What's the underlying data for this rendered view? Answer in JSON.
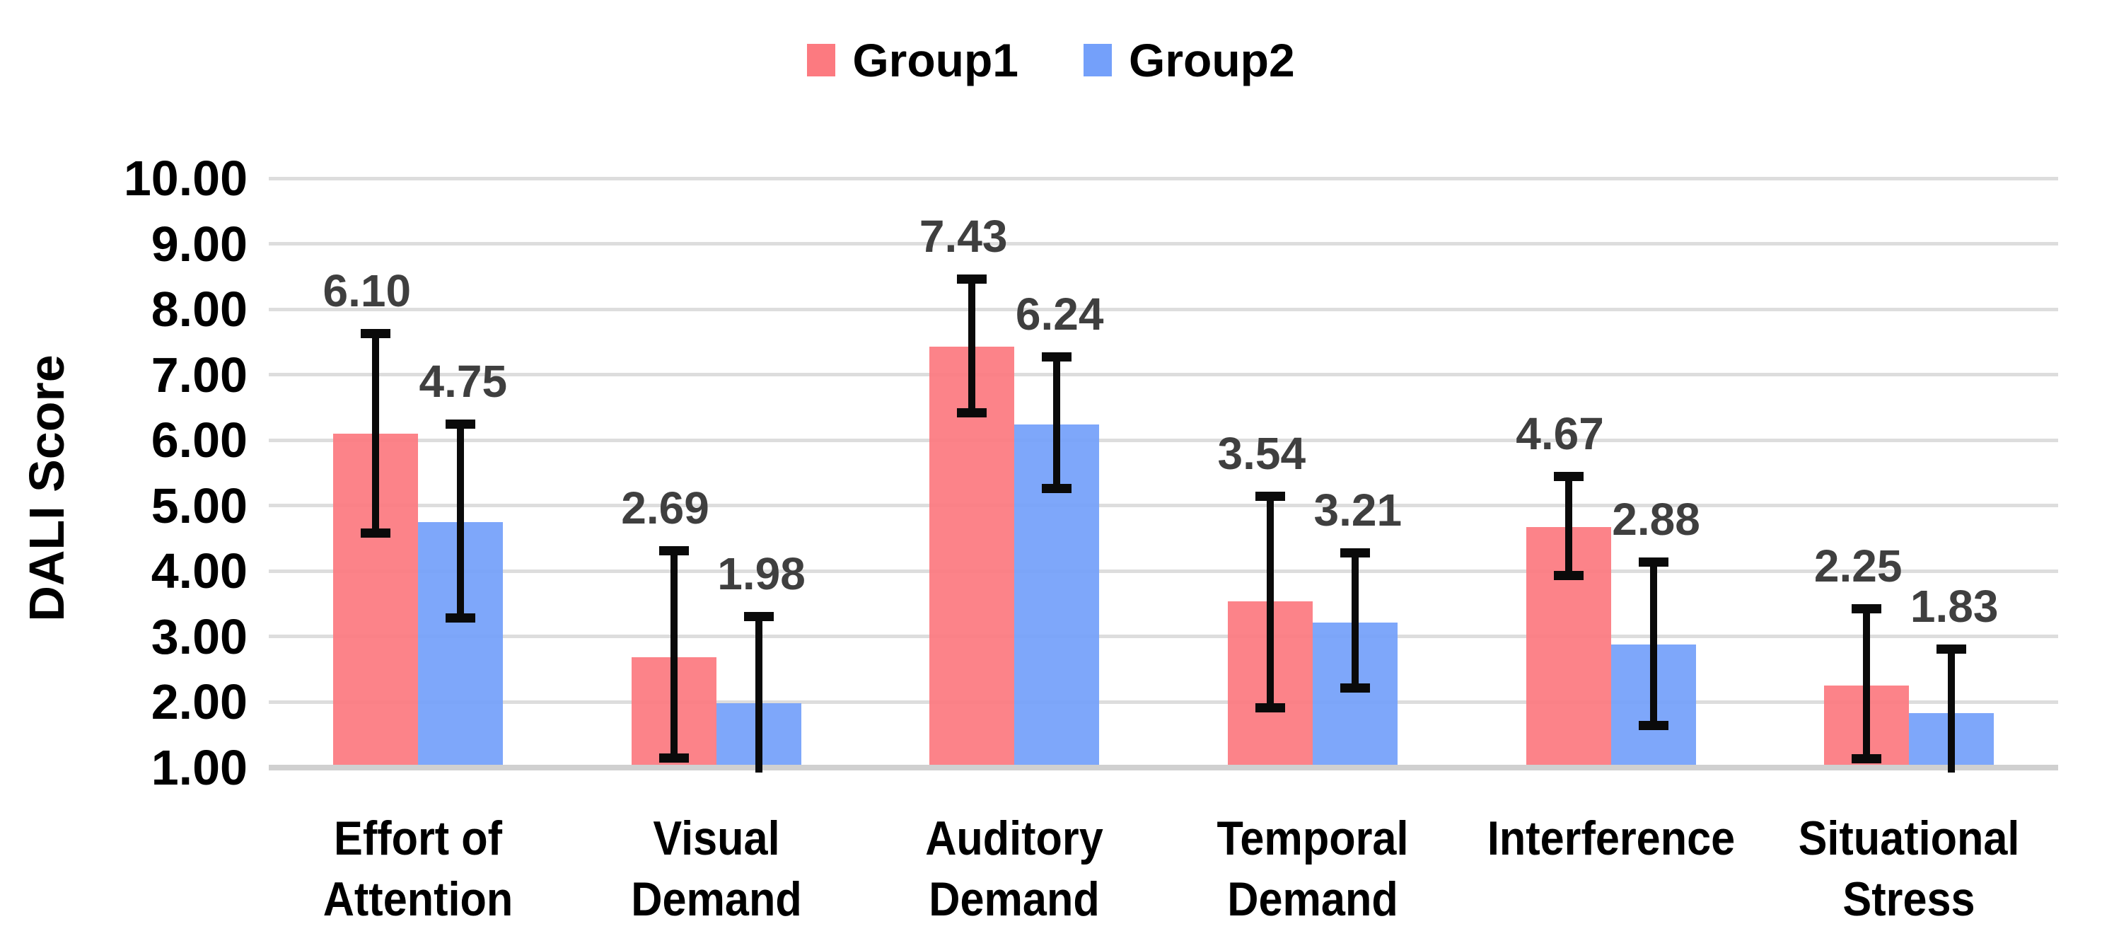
{
  "chart_data": {
    "type": "bar",
    "title": "",
    "ylabel": "DALI Score",
    "xlabel": "",
    "ylim": [
      1.0,
      10.0
    ],
    "ytick_interval": 1.0,
    "ytick_labels": [
      "10.00",
      "9.00",
      "8.00",
      "7.00",
      "6.00",
      "5.00",
      "4.00",
      "3.00",
      "2.00",
      "1.00"
    ],
    "grid": true,
    "legend_position": "top-center",
    "categories": [
      "Effort of Attention",
      "Visual Demand",
      "Auditory Demand",
      "Temporal Demand",
      "Interference",
      "Situational Stress"
    ],
    "category_lines": [
      [
        "Effort of",
        "Attention"
      ],
      [
        "Visual",
        "Demand"
      ],
      [
        "Auditory",
        "Demand"
      ],
      [
        "Temporal",
        "Demand"
      ],
      [
        "Interference"
      ],
      [
        "Situational",
        "Stress"
      ]
    ],
    "series": [
      {
        "name": "Group1",
        "color": "#FC7A80",
        "values": [
          6.1,
          2.69,
          7.43,
          3.54,
          4.67,
          2.25
        ],
        "data_labels": [
          "6.10",
          "2.69",
          "7.43",
          "3.54",
          "4.67",
          "2.25"
        ],
        "error_high": [
          7.63,
          4.32,
          8.47,
          5.15,
          5.45,
          3.43
        ],
        "error_low": [
          4.58,
          1.14,
          6.41,
          1.91,
          3.93,
          1.13
        ]
      },
      {
        "name": "Group2",
        "color": "#74A0FA",
        "values": [
          4.75,
          1.98,
          6.24,
          3.21,
          2.88,
          1.83
        ],
        "data_labels": [
          "4.75",
          "1.98",
          "6.24",
          "3.21",
          "2.88",
          "1.83"
        ],
        "error_high": [
          6.25,
          3.31,
          7.28,
          4.28,
          4.14,
          2.81
        ],
        "error_low": [
          3.28,
          0.65,
          5.26,
          2.21,
          1.64,
          0.85
        ]
      }
    ],
    "error_bars": true,
    "colors": {
      "background": "#FFFFFF",
      "gridline": "#DDDDDD",
      "baseline": "#D0D0D0",
      "error_bar": "#0A0A0A",
      "data_label": "#3F3F3F",
      "axis_text": "#000000"
    }
  }
}
